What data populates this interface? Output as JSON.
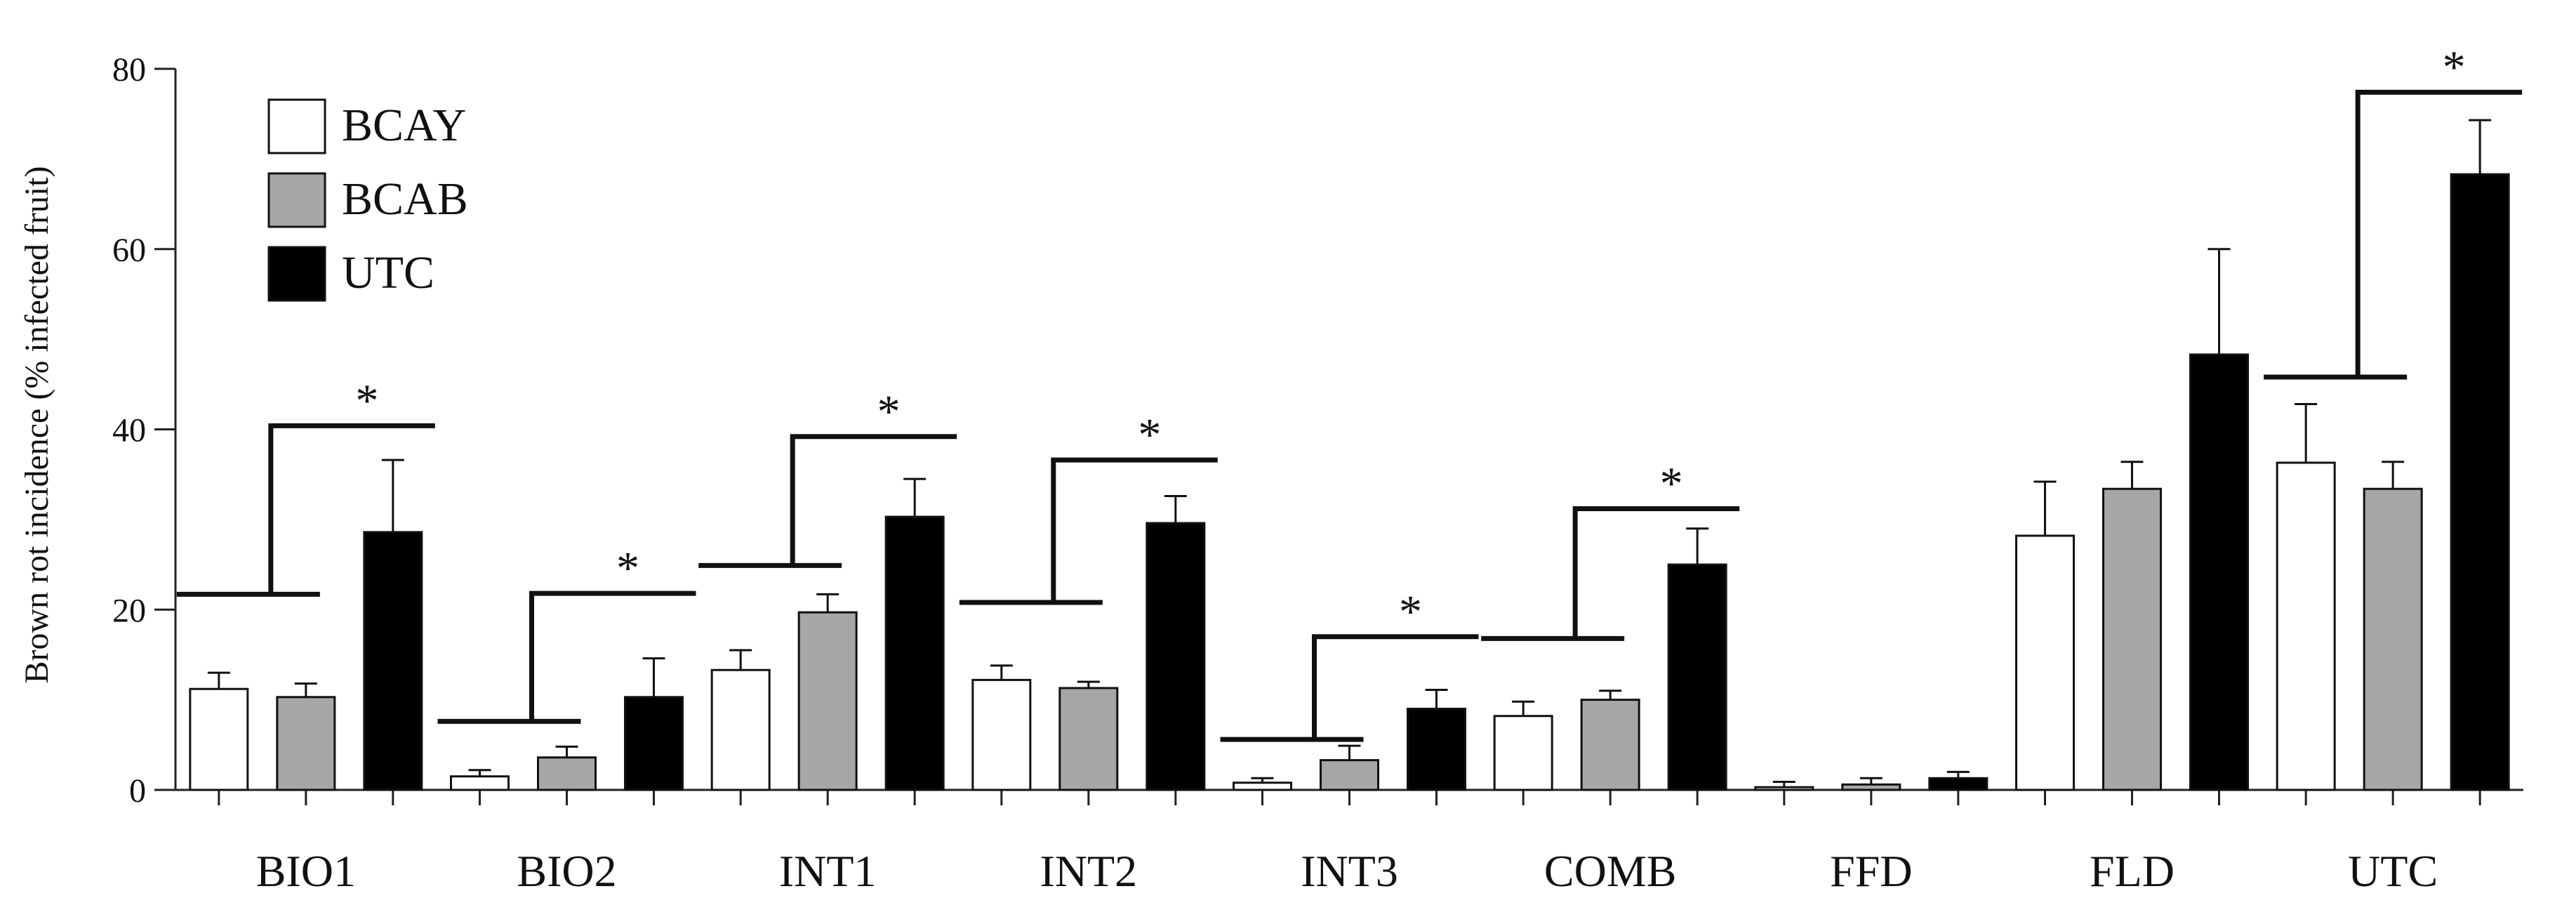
{
  "chart_data": {
    "type": "bar",
    "title": "",
    "xlabel": "",
    "ylabel": "Brown rot incidence (% infected fruit)",
    "ylim": [
      0,
      80
    ],
    "yticks": [
      0,
      20,
      40,
      60,
      80
    ],
    "categories": [
      "BIO1",
      "BIO2",
      "INT1",
      "INT2",
      "INT3",
      "COMB",
      "FFD",
      "FLD",
      "UTC"
    ],
    "series": [
      {
        "name": "BCAY",
        "color": "#ffffff",
        "values": [
          11.2,
          1.5,
          13.3,
          12.2,
          0.8,
          8.2,
          0.3,
          28.2,
          36.3
        ],
        "errors": [
          1.8,
          0.7,
          2.2,
          1.6,
          0.5,
          1.6,
          0.6,
          6.0,
          6.5
        ]
      },
      {
        "name": "BCAB",
        "color": "#a6a6a6",
        "values": [
          10.3,
          3.6,
          19.7,
          11.3,
          3.3,
          10.0,
          0.6,
          33.4,
          33.4
        ],
        "errors": [
          1.5,
          1.2,
          2.0,
          0.7,
          1.6,
          1.0,
          0.7,
          3.0,
          3.0
        ]
      },
      {
        "name": "UTC",
        "color": "#000000",
        "values": [
          28.6,
          10.3,
          30.3,
          29.6,
          9.0,
          25.0,
          1.3,
          48.3,
          68.3
        ],
        "errors": [
          8.0,
          4.3,
          4.2,
          3.0,
          2.1,
          4.0,
          0.7,
          11.7,
          6.0
        ]
      }
    ],
    "significance": [
      {
        "category": "BIO1",
        "label": "*",
        "left_y": 21.7,
        "top_y": 40.4
      },
      {
        "category": "BIO2",
        "label": "*",
        "left_y": 7.6,
        "top_y": 21.8
      },
      {
        "category": "INT1",
        "label": "*",
        "left_y": 24.9,
        "top_y": 39.2
      },
      {
        "category": "INT2",
        "label": "*",
        "left_y": 20.8,
        "top_y": 36.6
      },
      {
        "category": "INT3",
        "label": "*",
        "left_y": 5.6,
        "top_y": 17.0
      },
      {
        "category": "COMB",
        "label": "*",
        "left_y": 16.8,
        "top_y": 31.2
      },
      {
        "category": "UTC",
        "label": "*",
        "left_y": 45.8,
        "top_y": 77.4
      }
    ],
    "legend": "top-left",
    "grid": false
  }
}
